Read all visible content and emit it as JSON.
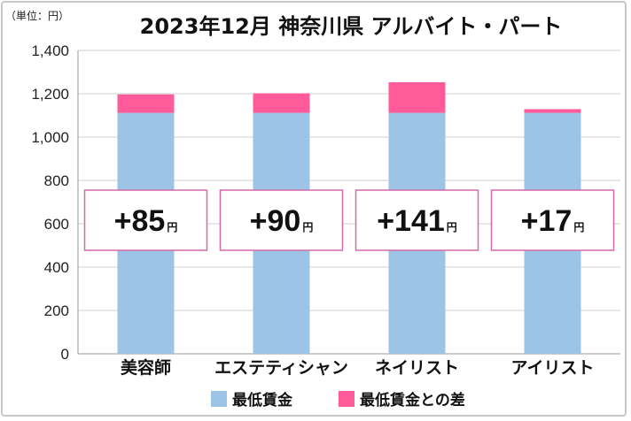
{
  "chart_data": {
    "type": "bar",
    "stacked": true,
    "title": "2023年12月 神奈川県 アルバイト・パート",
    "unit_label": "（単位：円）",
    "categories": [
      "美容師",
      "エステティシャン",
      "ネイリスト",
      "アイリスト"
    ],
    "series": [
      {
        "name": "最低賃金",
        "color": "#9dc3e6",
        "values": [
          1112,
          1112,
          1112,
          1112
        ]
      },
      {
        "name": "最低賃金との差",
        "color": "#ff5b9a",
        "values": [
          85,
          90,
          141,
          17
        ]
      }
    ],
    "diff_labels": [
      "+85",
      "+90",
      "+141",
      "+17"
    ],
    "diff_unit": "円",
    "ylim": [
      0,
      1400
    ],
    "yticks": [
      "0",
      "200",
      "400",
      "600",
      "800",
      "1,000",
      "1,200",
      "1,400"
    ],
    "grid": true,
    "legend_position": "bottom"
  }
}
